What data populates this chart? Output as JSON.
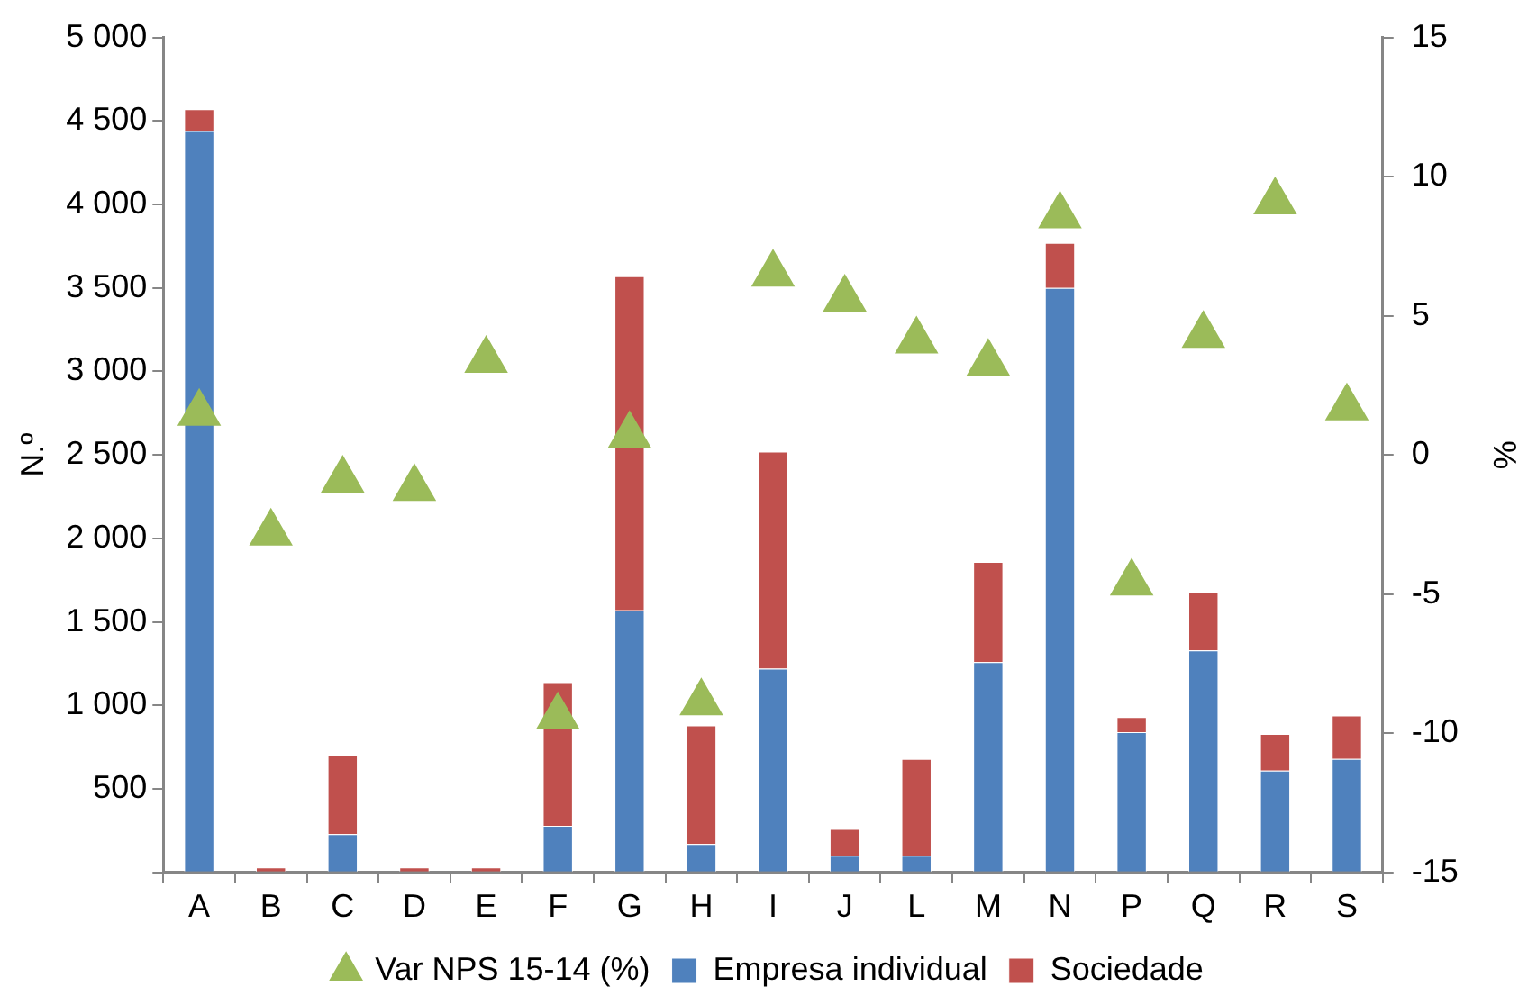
{
  "chart_data": {
    "type": "bar",
    "stacked": true,
    "ylabel": "N.º",
    "y2label": "%",
    "categories": [
      "A",
      "B",
      "C",
      "D",
      "E",
      "F",
      "G",
      "H",
      "I",
      "J",
      "L",
      "M",
      "N",
      "P",
      "Q",
      "R",
      "S"
    ],
    "series": [
      {
        "name": "Empresa individual",
        "color": "#4f81bd",
        "values": [
          4440,
          0,
          230,
          0,
          0,
          280,
          1570,
          170,
          1220,
          100,
          100,
          1260,
          3500,
          840,
          1330,
          610,
          680
        ]
      },
      {
        "name": "Sociedade",
        "color": "#c0504d",
        "values": [
          130,
          30,
          470,
          30,
          30,
          860,
          2000,
          710,
          1300,
          160,
          580,
          600,
          270,
          90,
          350,
          220,
          260
        ]
      },
      {
        "name": "Var NPS 15-14 (%)",
        "type": "scatter",
        "axis": "y2",
        "color": "#9bbb59",
        "marker": "triangle",
        "values": [
          1.5,
          -2.8,
          -0.9,
          -1.2,
          3.4,
          -9.4,
          0.7,
          -8.9,
          6.5,
          5.6,
          4.1,
          3.3,
          8.6,
          -4.6,
          4.3,
          9.1,
          1.7
        ]
      }
    ],
    "ylim": [
      0,
      5000
    ],
    "yticks": [
      {
        "value": 0,
        "label": null
      },
      500,
      {
        "value": 1000,
        "label": "1 000"
      },
      {
        "value": 1500,
        "label": "1 500"
      },
      {
        "value": 2000,
        "label": "2 000"
      },
      {
        "value": 2500,
        "label": "2 500"
      },
      {
        "value": 3000,
        "label": "3 000"
      },
      {
        "value": 3500,
        "label": "3 500"
      },
      {
        "value": 4000,
        "label": "4 000"
      },
      {
        "value": 4500,
        "label": "4 500"
      },
      {
        "value": 5000,
        "label": "5 000"
      }
    ],
    "y2lim": [
      -15,
      15
    ],
    "y2ticks": [
      -15,
      -10,
      -5,
      0,
      5,
      10,
      15
    ],
    "grid": false,
    "legend": "bottom"
  }
}
